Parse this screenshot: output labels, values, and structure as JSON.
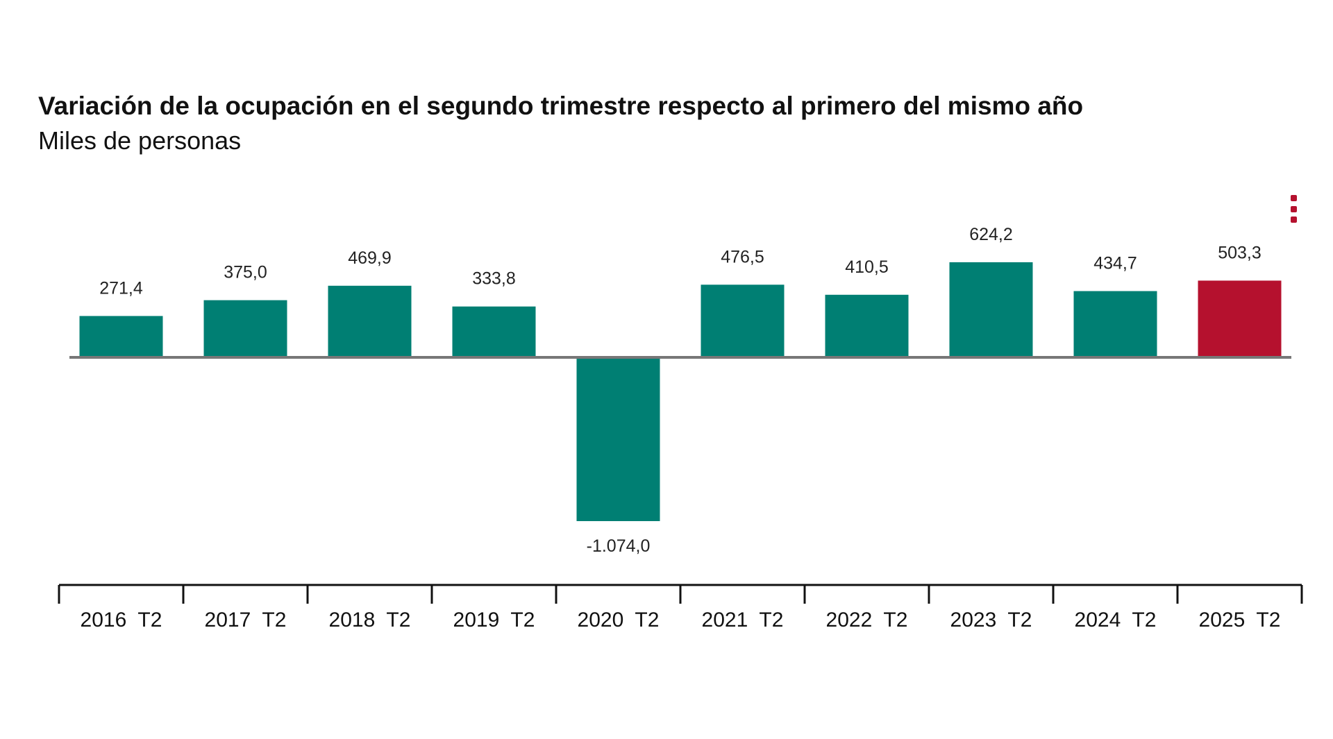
{
  "colors": {
    "bar_default": "#007f73",
    "bar_highlight": "#b5112e",
    "baseline": "#777777",
    "axis": "#111111",
    "menu_icon": "#b5112e"
  },
  "menu": {
    "icon": "vertical-ellipsis-icon"
  },
  "chart_data": {
    "type": "bar",
    "title": "Variación de la ocupación en el segundo trimestre respecto al primero del mismo año",
    "subtitle": "Miles de personas",
    "xlabel": "",
    "ylabel": "",
    "grid": false,
    "legend": "none",
    "ylim": [
      -1074.0,
      624.2
    ],
    "categories": [
      "2016  T2",
      "2017  T2",
      "2018  T2",
      "2019  T2",
      "2020  T2",
      "2021  T2",
      "2022  T2",
      "2023  T2",
      "2024  T2",
      "2025  T2"
    ],
    "values": [
      271.4,
      375.0,
      469.9,
      333.8,
      -1074.0,
      476.5,
      410.5,
      624.2,
      434.7,
      503.3
    ],
    "value_labels": [
      "271,4",
      "375,0",
      "469,9",
      "333,8",
      "-1.074,0",
      "476,5",
      "410,5",
      "624,2",
      "434,7",
      "503,3"
    ],
    "highlight_index": 9
  }
}
